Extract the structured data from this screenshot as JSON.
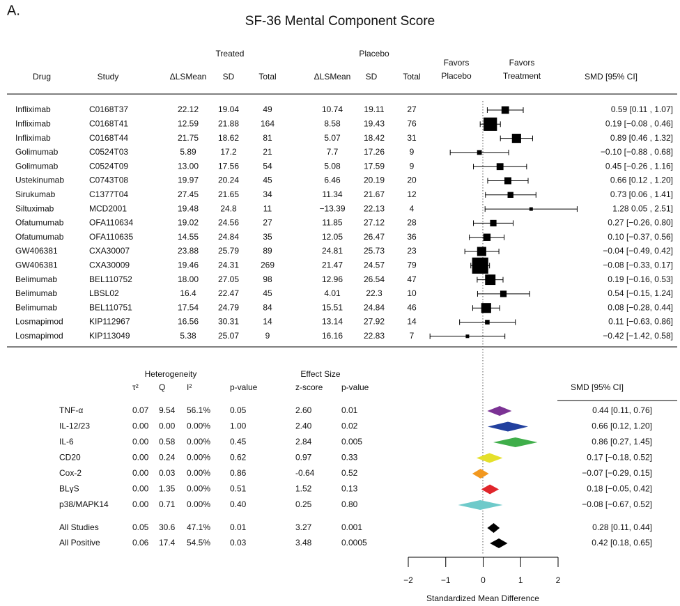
{
  "panel_label": "A.",
  "chart_data": {
    "type": "forest",
    "title": "SF-36 Mental Component Score",
    "headers": {
      "treated": "Treated",
      "placebo": "Placebo",
      "favors": "Favors",
      "favors_placebo": "Placebo",
      "favors_treatment": "Treatment",
      "columns": [
        "Drug",
        "Study",
        "ΔLSMean",
        "SD",
        "Total",
        "ΔLSMean",
        "SD",
        "Total"
      ],
      "smd": "SMD [95% CI]"
    },
    "studies": [
      {
        "cells": [
          "Infliximab",
          "C0168T37",
          "22.12",
          "19.04",
          "49",
          "10.74",
          "19.11",
          "27"
        ],
        "smd": 0.59,
        "ci": [
          0.11,
          1.07
        ],
        "label": "0.59 [0.11 , 1.07]"
      },
      {
        "cells": [
          "Infliximab",
          "C0168T41",
          "12.59",
          "21.88",
          "164",
          "8.58",
          "19.43",
          "76"
        ],
        "smd": 0.19,
        "ci": [
          -0.08,
          0.46
        ],
        "label": "0.19 [−0.08 , 0.46]"
      },
      {
        "cells": [
          "Infliximab",
          "C0168T44",
          "21.75",
          "18.62",
          "81",
          "5.07",
          "18.42",
          "31"
        ],
        "smd": 0.89,
        "ci": [
          0.46,
          1.32
        ],
        "label": "0.89 [0.46 , 1.32]"
      },
      {
        "cells": [
          "Golimumab",
          "C0524T03",
          "5.89",
          "17.2",
          "21",
          "7.7",
          "17.26",
          "9"
        ],
        "smd": -0.1,
        "ci": [
          -0.88,
          0.68
        ],
        "label": "−0.10 [−0.88 , 0.68]"
      },
      {
        "cells": [
          "Golimumab",
          "C0524T09",
          "13.00",
          "17.56",
          "54",
          "5.08",
          "17.59",
          "9"
        ],
        "smd": 0.45,
        "ci": [
          -0.26,
          1.16
        ],
        "label": "0.45 [−0.26 , 1.16]"
      },
      {
        "cells": [
          "Ustekinumab",
          "C0743T08",
          "19.97",
          "20.24",
          "45",
          "6.46",
          "20.19",
          "20"
        ],
        "smd": 0.66,
        "ci": [
          0.12,
          1.2
        ],
        "label": "0.66 [0.12 , 1.20]"
      },
      {
        "cells": [
          "Sirukumab",
          "C1377T04",
          "27.45",
          "21.65",
          "34",
          "11.34",
          "21.67",
          "12"
        ],
        "smd": 0.73,
        "ci": [
          0.06,
          1.41
        ],
        "label": "0.73 [0.06 , 1.41]"
      },
      {
        "cells": [
          "Siltuximab",
          "MCD2001",
          "19.48",
          "24.8",
          "11",
          "−13.39",
          "22.13",
          "4"
        ],
        "smd": 1.28,
        "ci": [
          0.05,
          2.51
        ],
        "label": "1.28  0.05 , 2.51]"
      },
      {
        "cells": [
          "Ofatumumab",
          "OFA110634",
          "19.02",
          "24.56",
          "27",
          "11.85",
          "27.12",
          "28"
        ],
        "smd": 0.27,
        "ci": [
          -0.26,
          0.8
        ],
        "label": "0.27 [−0.26, 0.80]"
      },
      {
        "cells": [
          "Ofatumumab",
          "OFA110635",
          "14.55",
          "24.84",
          "35",
          "12.05",
          "26.47",
          "36"
        ],
        "smd": 0.1,
        "ci": [
          -0.37,
          0.56
        ],
        "label": "0.10 [−0.37, 0.56]"
      },
      {
        "cells": [
          "GW406381",
          "CXA30007",
          "23.88",
          "25.79",
          "89",
          "24.81",
          "25.73",
          "23"
        ],
        "smd": -0.04,
        "ci": [
          -0.49,
          0.42
        ],
        "label": "−0.04 [−0.49, 0.42]"
      },
      {
        "cells": [
          "GW406381",
          "CXA30009",
          "19.46",
          "24.31",
          "269",
          "21.47",
          "24.57",
          "79"
        ],
        "smd": -0.08,
        "ci": [
          -0.33,
          0.17
        ],
        "label": "−0.08 [−0.33, 0.17]"
      },
      {
        "cells": [
          "Belimumab",
          "BEL110752",
          "18.00",
          "27.05",
          "98",
          "12.96",
          "26.54",
          "47"
        ],
        "smd": 0.19,
        "ci": [
          -0.16,
          0.53
        ],
        "label": "0.19 [−0.16, 0.53]"
      },
      {
        "cells": [
          "Belimumab",
          "LBSL02",
          "16.4",
          "22.47",
          "45",
          "4.01",
          "22.3",
          "10"
        ],
        "smd": 0.54,
        "ci": [
          -0.15,
          1.24
        ],
        "label": "0.54 [−0.15, 1.24]"
      },
      {
        "cells": [
          "Belimumab",
          "BEL110751",
          "17.54",
          "24.79",
          "84",
          "15.51",
          "24.84",
          "46"
        ],
        "smd": 0.08,
        "ci": [
          -0.28,
          0.44
        ],
        "label": "0.08 [−0.28, 0.44]"
      },
      {
        "cells": [
          "Losmapimod",
          "KIP112967",
          "16.56",
          "30.31",
          "14",
          "13.14",
          "27.92",
          "14"
        ],
        "smd": 0.11,
        "ci": [
          -0.63,
          0.86
        ],
        "label": "0.11 [−0.63, 0.86]"
      },
      {
        "cells": [
          "Losmapimod",
          "KIP113049",
          "5.38",
          "25.07",
          "9",
          "16.16",
          "22.83",
          "7"
        ],
        "smd": -0.42,
        "ci": [
          -1.42,
          0.58
        ],
        "label": "−0.42 [−1.42, 0.58]"
      }
    ],
    "summary_headers": {
      "heterogeneity": "Heterogeneity",
      "effect_size": "Effect Size",
      "columns": [
        "τ²",
        "Q",
        "I²",
        "p-value",
        "z-score",
        "p-value"
      ],
      "smd": "SMD [95% CI]"
    },
    "subgroups": [
      {
        "cells": [
          "TNF-α",
          "0.07",
          "9.54",
          "56.1%",
          "0.05",
          "2.60",
          "0.01"
        ],
        "smd": 0.44,
        "ci": [
          0.11,
          0.76
        ],
        "label": "0.44 [0.11, 0.76]",
        "color": "#7b3294"
      },
      {
        "cells": [
          "IL-12/23",
          "0.00",
          "0.00",
          "0.00%",
          "1.00",
          "2.40",
          "0.02"
        ],
        "smd": 0.66,
        "ci": [
          0.12,
          1.2
        ],
        "label": "0.66 [0.12, 1.20]",
        "color": "#22409e"
      },
      {
        "cells": [
          "IL-6",
          "0.00",
          "0.58",
          "0.00%",
          "0.45",
          "2.84",
          "0.005"
        ],
        "smd": 0.86,
        "ci": [
          0.27,
          1.45
        ],
        "label": "0.86 [0.27, 1.45]",
        "color": "#3fae4a"
      },
      {
        "cells": [
          "CD20",
          "0.00",
          "0.24",
          "0.00%",
          "0.62",
          "0.97",
          "0.33"
        ],
        "smd": 0.17,
        "ci": [
          -0.18,
          0.52
        ],
        "label": "0.17 [−0.18, 0.52]",
        "color": "#e5e02b"
      },
      {
        "cells": [
          "Cox-2",
          "0.00",
          "0.03",
          "0.00%",
          "0.86",
          "-0.64",
          "0.52"
        ],
        "smd": -0.07,
        "ci": [
          -0.29,
          0.15
        ],
        "label": "−0.07 [−0.29, 0.15]",
        "color": "#f2981f"
      },
      {
        "cells": [
          "BLγS",
          "0.00",
          "1.35",
          "0.00%",
          "0.51",
          "1.52",
          "0.13"
        ],
        "smd": 0.18,
        "ci": [
          -0.05,
          0.42
        ],
        "label": "0.18 [−0.05, 0.42]",
        "color": "#e0252b"
      },
      {
        "cells": [
          "p38/MAPK14",
          "0.00",
          "0.71",
          "0.00%",
          "0.40",
          "0.25",
          "0.80"
        ],
        "smd": -0.08,
        "ci": [
          -0.67,
          0.52
        ],
        "label": "−0.08 [−0.67, 0.52]",
        "color": "#6ecaca"
      },
      {
        "cells": [
          "All Studies",
          "0.05",
          "30.6",
          "47.1%",
          "0.01",
          "3.27",
          "0.001"
        ],
        "smd": 0.28,
        "ci": [
          0.11,
          0.44
        ],
        "label": "0.28 [0.11, 0.44]",
        "color": "#000000"
      },
      {
        "cells": [
          "All Positive",
          "0.06",
          "17.4",
          "54.5%",
          "0.03",
          "3.48",
          "0.0005"
        ],
        "smd": 0.42,
        "ci": [
          0.18,
          0.65
        ],
        "label": "0.42 [0.18, 0.65]",
        "color": "#000000"
      }
    ],
    "xlabel": "Standardized Mean Difference",
    "xlim": [
      -2,
      2
    ],
    "xticks": [
      {
        "value": -2,
        "label": "−2"
      },
      {
        "value": -1,
        "label": "−1"
      },
      0,
      1,
      2
    ]
  }
}
